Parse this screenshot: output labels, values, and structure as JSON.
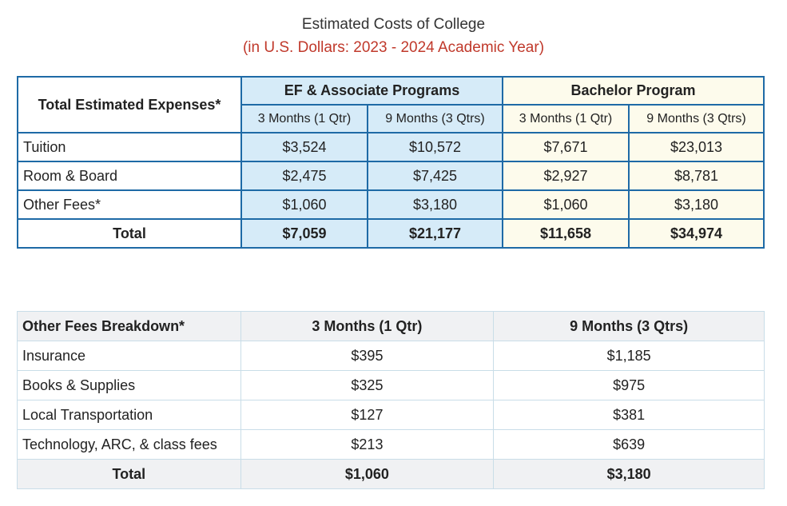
{
  "title": "Estimated Costs of College",
  "subtitle": "(in U.S. Dollars: 2023 - 2024 Academic Year)",
  "colors": {
    "subtitle": "#c0392b",
    "border": "#1e6aa6",
    "ef_fill": "#d6ebf8",
    "bachelor_fill": "#fdfbec",
    "breakdown_header_fill": "#f0f1f3"
  },
  "expenses": {
    "corner_label": "Total Estimated Expenses*",
    "groups": [
      "EF & Associate Programs",
      "Bachelor Program"
    ],
    "subheaders": [
      "3 Months (1 Qtr)",
      "9 Months (3 Qtrs)",
      "3 Months (1 Qtr)",
      "9 Months (3 Qtrs)"
    ],
    "rows": [
      {
        "label": "Tuition",
        "values": [
          "$3,524",
          "$10,572",
          "$7,671",
          "$23,013"
        ]
      },
      {
        "label": "Room & Board",
        "values": [
          "$2,475",
          "$7,425",
          "$2,927",
          "$8,781"
        ]
      },
      {
        "label": "Other Fees*",
        "values": [
          "$1,060",
          "$3,180",
          "$1,060",
          "$3,180"
        ]
      }
    ],
    "total": {
      "label": "Total",
      "values": [
        "$7,059",
        "$21,177",
        "$11,658",
        "$34,974"
      ]
    }
  },
  "breakdown": {
    "headers": [
      "Other Fees Breakdown*",
      "3 Months (1 Qtr)",
      "9 Months (3 Qtrs)"
    ],
    "rows": [
      {
        "label": "Insurance",
        "values": [
          "$395",
          "$1,185"
        ]
      },
      {
        "label": "Books & Supplies",
        "values": [
          "$325",
          "$975"
        ]
      },
      {
        "label": "Local Transportation",
        "values": [
          "$127",
          "$381"
        ]
      },
      {
        "label": "Technology, ARC, & class fees",
        "values": [
          "$213",
          "$639"
        ]
      }
    ],
    "total": {
      "label": "Total",
      "values": [
        "$1,060",
        "$3,180"
      ]
    }
  }
}
